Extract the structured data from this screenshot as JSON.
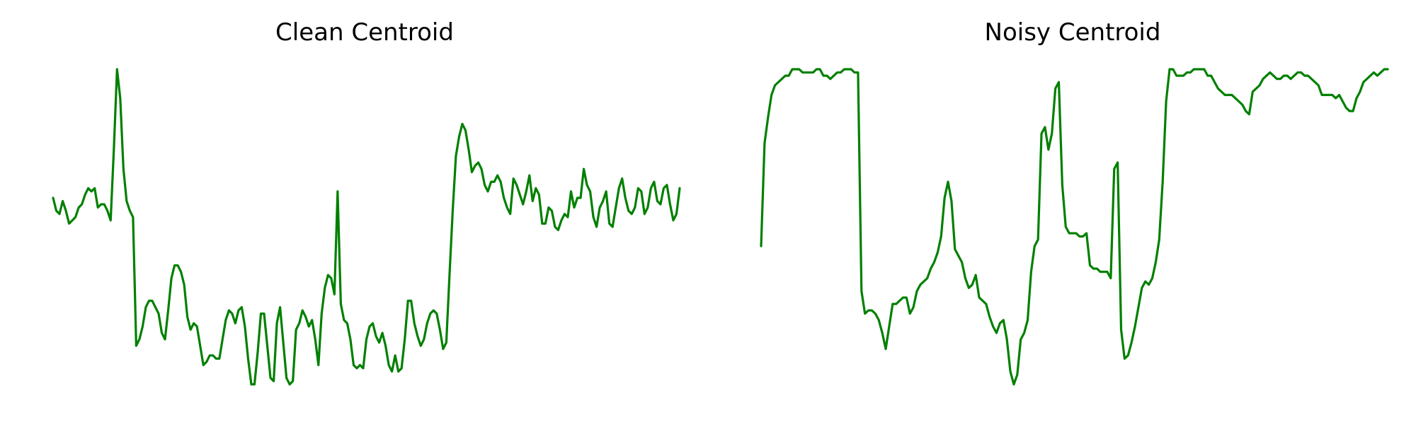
{
  "chart_data": [
    {
      "type": "line",
      "title": "Clean Centroid",
      "xlabel": "",
      "ylabel": "",
      "grid": false,
      "axes_visible": false,
      "color": "#008000",
      "ylim": [
        0.0,
        1.0
      ],
      "series": [
        {
          "values": [
            0.6,
            0.56,
            0.55,
            0.59,
            0.56,
            0.52,
            0.53,
            0.54,
            0.57,
            0.58,
            0.61,
            0.63,
            0.62,
            0.63,
            0.57,
            0.58,
            0.58,
            0.56,
            0.53,
            0.75,
            1.0,
            0.91,
            0.69,
            0.59,
            0.56,
            0.54,
            0.14,
            0.16,
            0.2,
            0.26,
            0.28,
            0.28,
            0.26,
            0.24,
            0.18,
            0.16,
            0.25,
            0.35,
            0.39,
            0.39,
            0.37,
            0.33,
            0.23,
            0.19,
            0.21,
            0.2,
            0.14,
            0.08,
            0.09,
            0.11,
            0.11,
            0.1,
            0.1,
            0.16,
            0.22,
            0.25,
            0.24,
            0.21,
            0.25,
            0.26,
            0.2,
            0.1,
            0.02,
            0.02,
            0.12,
            0.24,
            0.24,
            0.14,
            0.04,
            0.03,
            0.21,
            0.26,
            0.15,
            0.04,
            0.02,
            0.03,
            0.19,
            0.21,
            0.25,
            0.23,
            0.2,
            0.22,
            0.16,
            0.08,
            0.24,
            0.32,
            0.36,
            0.35,
            0.3,
            0.62,
            0.27,
            0.22,
            0.21,
            0.16,
            0.08,
            0.07,
            0.08,
            0.07,
            0.16,
            0.2,
            0.21,
            0.17,
            0.15,
            0.18,
            0.14,
            0.08,
            0.06,
            0.11,
            0.06,
            0.07,
            0.16,
            0.28,
            0.28,
            0.21,
            0.17,
            0.14,
            0.16,
            0.21,
            0.24,
            0.25,
            0.24,
            0.19,
            0.13,
            0.15,
            0.36,
            0.56,
            0.73,
            0.79,
            0.83,
            0.81,
            0.75,
            0.68,
            0.7,
            0.71,
            0.69,
            0.64,
            0.62,
            0.65,
            0.65,
            0.67,
            0.65,
            0.6,
            0.57,
            0.55,
            0.66,
            0.64,
            0.61,
            0.58,
            0.62,
            0.67,
            0.59,
            0.63,
            0.61,
            0.52,
            0.52,
            0.57,
            0.56,
            0.51,
            0.5,
            0.53,
            0.55,
            0.54,
            0.62,
            0.57,
            0.6,
            0.6,
            0.69,
            0.64,
            0.62,
            0.54,
            0.51,
            0.57,
            0.59,
            0.62,
            0.52,
            0.51,
            0.57,
            0.63,
            0.66,
            0.6,
            0.56,
            0.55,
            0.57,
            0.63,
            0.62,
            0.55,
            0.57,
            0.63,
            0.65,
            0.59,
            0.58,
            0.63,
            0.64,
            0.58,
            0.53,
            0.55,
            0.63
          ]
        }
      ]
    },
    {
      "type": "line",
      "title": "Noisy Centroid",
      "xlabel": "",
      "ylabel": "",
      "grid": false,
      "axes_visible": false,
      "color": "#008000",
      "ylim": [
        0.0,
        1.0
      ],
      "series": [
        {
          "values": [
            0.45,
            0.77,
            0.85,
            0.92,
            0.95,
            0.96,
            0.97,
            0.98,
            0.98,
            1.0,
            1.0,
            1.0,
            0.99,
            0.99,
            0.99,
            0.99,
            1.0,
            1.0,
            0.98,
            0.98,
            0.97,
            0.98,
            0.99,
            0.99,
            1.0,
            1.0,
            1.0,
            0.99,
            0.99,
            0.31,
            0.24,
            0.25,
            0.25,
            0.24,
            0.22,
            0.18,
            0.13,
            0.2,
            0.27,
            0.27,
            0.28,
            0.29,
            0.29,
            0.24,
            0.26,
            0.31,
            0.33,
            0.34,
            0.35,
            0.38,
            0.4,
            0.43,
            0.48,
            0.6,
            0.65,
            0.59,
            0.44,
            0.42,
            0.4,
            0.35,
            0.32,
            0.33,
            0.36,
            0.29,
            0.28,
            0.27,
            0.23,
            0.2,
            0.18,
            0.21,
            0.22,
            0.16,
            0.06,
            0.02,
            0.05,
            0.16,
            0.18,
            0.22,
            0.37,
            0.45,
            0.47,
            0.8,
            0.82,
            0.75,
            0.8,
            0.94,
            0.96,
            0.64,
            0.51,
            0.49,
            0.49,
            0.49,
            0.48,
            0.48,
            0.49,
            0.39,
            0.38,
            0.38,
            0.37,
            0.37,
            0.37,
            0.35,
            0.69,
            0.71,
            0.19,
            0.1,
            0.11,
            0.15,
            0.2,
            0.26,
            0.32,
            0.34,
            0.33,
            0.35,
            0.4,
            0.47,
            0.65,
            0.9,
            1.0,
            1.0,
            0.98,
            0.98,
            0.98,
            0.99,
            0.99,
            1.0,
            1.0,
            1.0,
            1.0,
            0.98,
            0.98,
            0.96,
            0.94,
            0.93,
            0.92,
            0.92,
            0.92,
            0.91,
            0.9,
            0.89,
            0.87,
            0.86,
            0.93,
            0.94,
            0.95,
            0.97,
            0.98,
            0.99,
            0.98,
            0.97,
            0.97,
            0.98,
            0.98,
            0.97,
            0.98,
            0.99,
            0.99,
            0.98,
            0.98,
            0.97,
            0.96,
            0.95,
            0.92,
            0.92,
            0.92,
            0.92,
            0.91,
            0.92,
            0.9,
            0.88,
            0.87,
            0.87,
            0.91,
            0.93,
            0.96,
            0.97,
            0.98,
            0.99,
            0.98,
            0.99,
            1.0,
            1.0
          ]
        }
      ]
    }
  ]
}
